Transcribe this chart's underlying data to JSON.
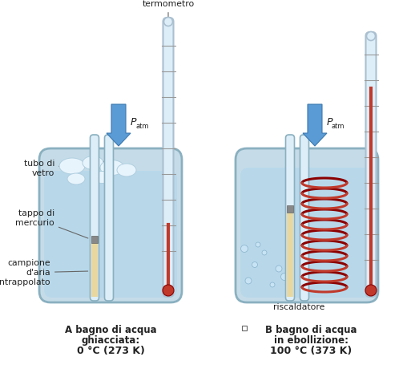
{
  "bg_color": "#ffffff",
  "water_color": "#b8d8ea",
  "water_outline": "none",
  "container_face": "#c5dce8",
  "container_edge": "#8ab0c0",
  "tube_face": "#ddeef8",
  "tube_edge": "#8ab0c0",
  "thermo_face": "#ddeef8",
  "thermo_edge": "#aac0d0",
  "mercury_face": "#888888",
  "mercury_edge": "#666666",
  "air_face": "#e8d8a0",
  "red_color": "#c0392b",
  "coil_color": "#c0392b",
  "coil_dark": "#8b0000",
  "arrow_color": "#5b9bd5",
  "arrow_edge": "#3a78b0",
  "ice_face": "#e8f4fc",
  "ice_edge": "#b0cfe0",
  "bubble_face": "#c8e4f4",
  "bubble_edge": "#90b8d0",
  "text_color": "#222222",
  "line_color": "#666666",
  "label_A_line1": "A bagno di acqua",
  "label_A_line2": "ghiacciata:",
  "label_A_line3": "0 °C (273 K)",
  "label_B_line1": "B bagno di acqua",
  "label_B_line2": "in ebollizione:",
  "label_B_line3": "100 °C (373 K)"
}
